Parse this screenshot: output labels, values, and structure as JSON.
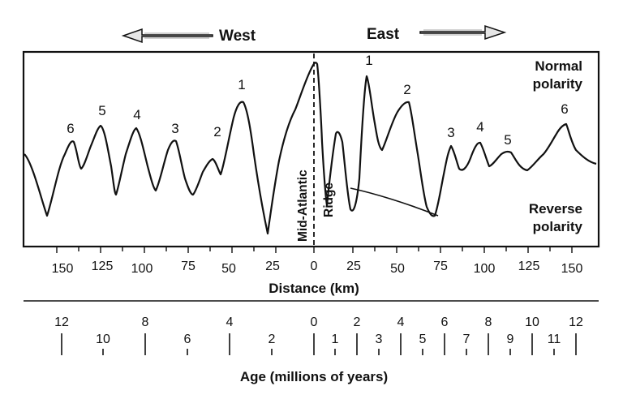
{
  "header": {
    "west_label": "West",
    "east_label": "East"
  },
  "profile": {
    "normal_label_line1": "Normal",
    "normal_label_line2": "polarity",
    "reverse_label_line1": "Reverse",
    "reverse_label_line2": "polarity",
    "ridge_label_line1": "Mid-Atlantic",
    "ridge_label_line2": "Ridge",
    "west_peaks": [
      "1",
      "2",
      "3",
      "4",
      "5",
      "6"
    ],
    "east_peaks": [
      "1",
      "2",
      "3",
      "4",
      "5",
      "6"
    ]
  },
  "distance_axis": {
    "title": "Distance (km)",
    "west_ticks": [
      "150",
      "125",
      "100",
      "75",
      "50",
      "25"
    ],
    "center_tick": "0",
    "east_ticks": [
      "25",
      "50",
      "75",
      "100",
      "125",
      "150"
    ]
  },
  "age_axis": {
    "title": "Age (millions of years)",
    "west_even": [
      "12",
      "8",
      "4",
      "0"
    ],
    "west_lower": [
      "10",
      "6",
      "2"
    ],
    "east_even": [
      "2",
      "4",
      "6",
      "8",
      "10",
      "12"
    ],
    "east_lower": [
      "1",
      "3",
      "5",
      "7",
      "9",
      "11"
    ]
  },
  "colors": {
    "ink": "#111111",
    "paper": "#ffffff",
    "arrow_fill": "#e6e6e6"
  }
}
